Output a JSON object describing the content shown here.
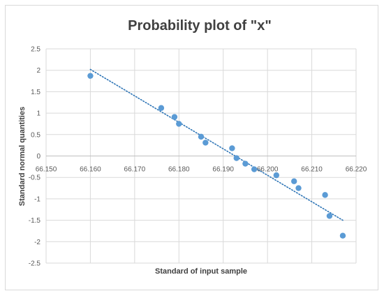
{
  "chart_data": {
    "type": "scatter",
    "title": "Probability plot of  \"x\"",
    "xlabel": "Standard of input sample",
    "ylabel": "Standard normal quantities",
    "xlim": [
      66.15,
      66.22
    ],
    "ylim": [
      -2.5,
      2.5
    ],
    "x_ticks": [
      "66.150",
      "66.160",
      "66.170",
      "66.180",
      "66.190",
      "66.200",
      "66.210",
      "66.220"
    ],
    "y_ticks": [
      "2.5",
      "2",
      "1.5",
      "1",
      "0.5",
      "0",
      "-0.5",
      "-1",
      "-1.5",
      "-2",
      "-2.5"
    ],
    "grid": "horizontal",
    "legend": "none",
    "point_color": "#5b9bd5",
    "trendline": {
      "style": "dotted",
      "color": "#2e75b6",
      "from": [
        66.16,
        2.02
      ],
      "to": [
        66.217,
        -1.5
      ]
    },
    "series": [
      {
        "x": [
          66.16,
          66.176,
          66.179,
          66.18,
          66.185,
          66.186,
          66.192,
          66.193,
          66.195,
          66.197,
          66.202,
          66.206,
          66.207,
          66.213,
          66.214,
          66.217
        ],
        "y": [
          1.87,
          1.12,
          0.91,
          0.75,
          0.45,
          0.31,
          0.18,
          -0.05,
          -0.18,
          -0.31,
          -0.45,
          -0.59,
          -0.75,
          -0.91,
          -1.4,
          -1.86
        ]
      }
    ]
  }
}
